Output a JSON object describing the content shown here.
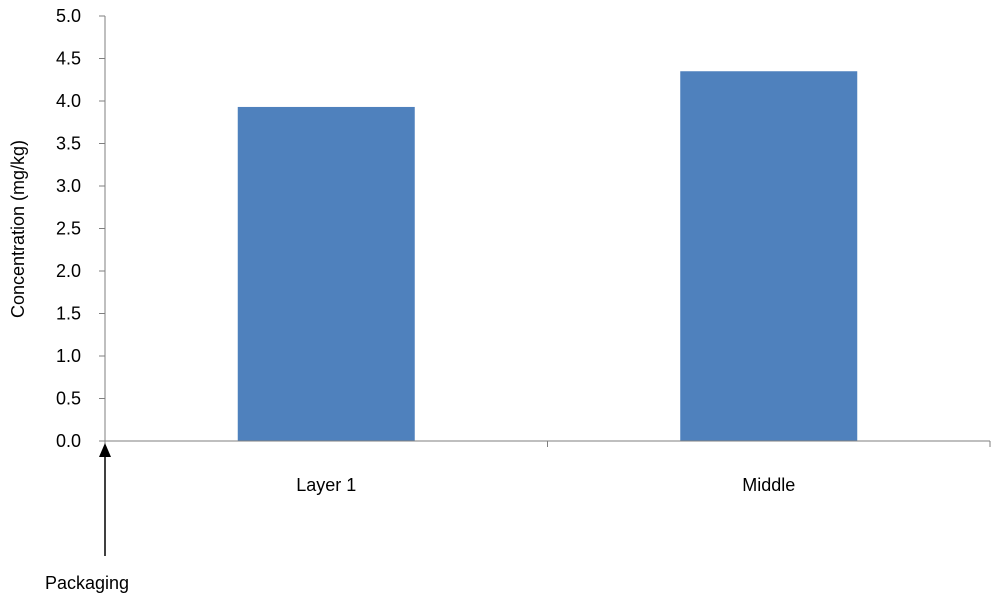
{
  "chart_data": {
    "type": "bar",
    "categories": [
      "Layer 1",
      "Middle"
    ],
    "values": [
      3.93,
      4.35
    ],
    "ylabel": "Concentration (mg/kg)",
    "xlabel": "",
    "ylim": [
      0,
      5
    ],
    "yticks": [
      0.0,
      0.5,
      1.0,
      1.5,
      2.0,
      2.5,
      3.0,
      3.5,
      4.0,
      4.5,
      5.0
    ],
    "grid": false,
    "legend": "none",
    "bar_color": "#4f81bd",
    "annotation": {
      "text": "Packaging",
      "arrow": "up"
    }
  }
}
